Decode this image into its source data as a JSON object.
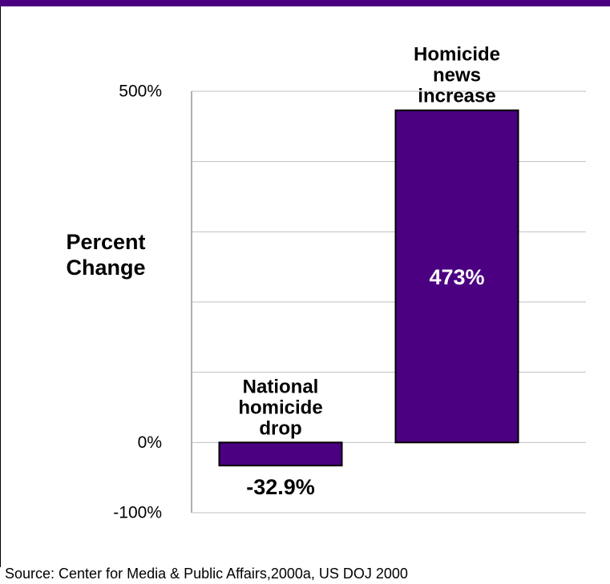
{
  "chart_data": {
    "type": "bar",
    "categories": [
      "National homicide drop",
      "Homicide news increase"
    ],
    "values": [
      -32.9,
      473
    ],
    "data_labels": [
      "-32.9%",
      "473%"
    ],
    "category_labels": [
      [
        "National",
        "homicide",
        "drop"
      ],
      [
        "Homicide",
        "news",
        "increase"
      ]
    ],
    "ylabel": [
      "Percent",
      "Change"
    ],
    "yticks": [
      {
        "value": 500,
        "label": "500%"
      },
      {
        "value": 0,
        "label": "0%"
      },
      {
        "value": -100,
        "label": "-100%"
      }
    ],
    "ylim": [
      -100,
      500
    ],
    "grid_values": [
      100,
      200,
      300,
      400,
      500
    ],
    "grid": true,
    "bar_color": "#4B0082",
    "source": "Source:  Center for Media & Public Affairs,2000a, US DOJ 2000"
  }
}
